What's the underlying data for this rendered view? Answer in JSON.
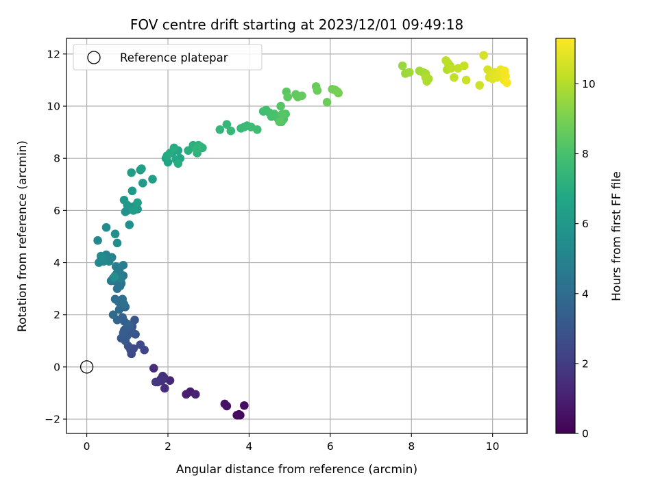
{
  "chart_data": {
    "type": "scatter",
    "title": "FOV centre drift starting at 2023/12/01 09:49:18",
    "xlabel": "Angular distance from reference (arcmin)",
    "ylabel": "Rotation from reference (arcmin)",
    "xlim": [
      -0.5,
      10.85
    ],
    "ylim": [
      -2.55,
      12.6
    ],
    "xticks": [
      "0",
      "2",
      "4",
      "6",
      "8",
      "10"
    ],
    "xtick_values": [
      0,
      2,
      4,
      6,
      8,
      10
    ],
    "yticks": [
      "−2",
      "0",
      "2",
      "4",
      "6",
      "8",
      "10",
      "12"
    ],
    "ytick_values": [
      -2,
      0,
      2,
      4,
      6,
      8,
      10,
      12
    ],
    "grid": true,
    "legend": {
      "placement": "upper-left",
      "entries": [
        "Reference platepar"
      ]
    },
    "reference_point": {
      "x": 0,
      "y": 0,
      "marker": "open-circle"
    },
    "colorbar": {
      "label": "Hours from first FF file",
      "range": [
        0,
        11.3
      ],
      "ticks": [
        "0",
        "2",
        "4",
        "6",
        "8",
        "10"
      ],
      "tick_values": [
        0,
        2,
        4,
        6,
        8,
        10
      ],
      "colormap": "viridis"
    },
    "points": {
      "x": [
        3.72,
        3.75,
        3.78,
        3.7,
        3.88,
        3.4,
        3.45,
        2.45,
        2.55,
        2.68,
        2.05,
        1.82,
        1.65,
        1.87,
        1.9,
        1.85,
        1.92,
        1.75,
        1.7,
        1.42,
        1.32,
        1.1,
        1.08,
        1.15,
        1.02,
        0.95,
        0.88,
        1.2,
        1.05,
        0.95,
        0.92,
        1.12,
        1.18,
        0.85,
        1.0,
        0.9,
        1.1,
        0.95,
        1.05,
        0.88,
        0.92,
        1.0,
        0.75,
        0.8,
        0.85,
        0.95,
        0.65,
        0.7,
        0.78,
        0.88,
        0.92,
        0.75,
        0.82,
        0.85,
        0.68,
        0.8,
        0.9,
        0.7,
        0.6,
        0.75,
        0.8,
        0.85,
        0.9,
        0.65,
        0.72,
        0.55,
        0.62,
        0.48,
        0.4,
        0.55,
        0.3,
        0.35,
        0.42,
        0.27,
        0.48,
        0.35,
        0.7,
        0.75,
        0.68,
        1.05,
        0.95,
        1.0,
        1.1,
        1.15,
        1.25,
        0.92,
        1.0,
        1.12,
        1.38,
        1.32,
        1.1,
        1.62,
        1.35,
        1.25,
        1.15,
        2.0,
        1.95,
        2.1,
        2.25,
        2.3,
        2.2,
        1.98,
        2.05,
        2.15,
        2.25,
        2.5,
        2.62,
        2.75,
        2.72,
        2.85,
        2.8,
        2.7,
        3.28,
        3.45,
        3.55,
        3.8,
        3.88,
        3.95,
        4.05,
        4.2,
        4.35,
        4.42,
        4.5,
        4.55,
        4.62,
        4.72,
        4.8,
        4.85,
        4.9,
        4.78,
        4.82,
        4.75,
        4.92,
        4.95,
        5.15,
        5.2,
        5.3,
        5.65,
        5.68,
        5.92,
        6.05,
        6.12,
        6.18,
        6.2,
        7.78,
        7.85,
        7.95,
        8.2,
        8.28,
        8.35,
        8.42,
        8.38,
        8.35,
        8.88,
        8.95,
        8.9,
        8.85,
        8.98,
        9.05,
        9.15,
        9.3,
        9.35,
        9.68,
        9.78,
        9.88,
        9.92,
        9.95,
        10.0,
        10.05,
        10.1,
        10.15,
        10.2,
        10.25,
        10.28,
        10.3,
        10.32,
        10.35
      ],
      "y": [
        -1.85,
        -1.82,
        -1.85,
        -1.85,
        -1.48,
        -1.42,
        -1.5,
        -1.05,
        -0.95,
        -1.05,
        -0.52,
        -0.48,
        -0.05,
        -0.35,
        -0.4,
        -0.52,
        -0.82,
        -0.58,
        -0.58,
        0.65,
        0.85,
        0.5,
        0.65,
        0.7,
        0.8,
        1.0,
        1.12,
        1.25,
        1.3,
        1.0,
        1.4,
        1.55,
        1.8,
        1.1,
        1.2,
        1.3,
        1.4,
        1.45,
        1.6,
        1.9,
        1.75,
        1.65,
        1.8,
        2.2,
        2.4,
        2.3,
        2.0,
        2.6,
        2.5,
        2.6,
        2.4,
        3.0,
        3.1,
        3.2,
        3.3,
        3.4,
        3.5,
        3.5,
        3.3,
        3.6,
        3.7,
        3.4,
        3.9,
        3.4,
        3.85,
        4.1,
        4.2,
        4.3,
        4.2,
        4.05,
        4.0,
        4.1,
        4.05,
        4.85,
        5.35,
        4.25,
        5.1,
        4.75,
        3.45,
        5.45,
        5.95,
        6.0,
        6.1,
        6.15,
        6.05,
        6.4,
        6.2,
        6.75,
        7.05,
        7.55,
        7.45,
        7.2,
        7.6,
        6.3,
        6.0,
        7.85,
        8.0,
        8.2,
        8.3,
        8.0,
        7.95,
        8.1,
        8.2,
        8.4,
        7.8,
        8.3,
        8.5,
        8.5,
        8.2,
        8.4,
        8.45,
        8.35,
        9.1,
        9.3,
        9.05,
        9.15,
        9.2,
        9.25,
        9.2,
        9.1,
        9.8,
        9.85,
        9.75,
        9.6,
        9.7,
        9.5,
        9.4,
        9.5,
        9.7,
        10.0,
        9.7,
        9.4,
        10.55,
        10.35,
        10.45,
        10.35,
        10.4,
        10.75,
        10.6,
        10.15,
        10.65,
        10.62,
        10.55,
        10.5,
        11.55,
        11.25,
        11.3,
        11.35,
        11.3,
        11.25,
        11.05,
        10.95,
        11.1,
        11.4,
        11.55,
        11.65,
        11.75,
        11.45,
        11.1,
        11.45,
        11.55,
        11.0,
        10.8,
        11.95,
        11.4,
        11.1,
        11.2,
        11.05,
        11.3,
        11.1,
        11.2,
        11.4,
        11.25,
        11.0,
        11.35,
        11.15,
        10.9
      ],
      "hours": [
        0.3,
        0.25,
        0.2,
        0.35,
        0.4,
        0.6,
        0.55,
        1.0,
        0.9,
        1.05,
        1.25,
        1.3,
        1.45,
        1.6,
        1.55,
        1.65,
        1.5,
        1.7,
        1.75,
        2.35,
        2.45,
        2.5,
        2.6,
        2.55,
        2.7,
        2.8,
        2.9,
        3.0,
        3.05,
        3.1,
        3.15,
        2.95,
        3.0,
        3.2,
        3.25,
        3.3,
        3.2,
        3.35,
        3.4,
        3.5,
        3.45,
        3.55,
        3.6,
        3.8,
        3.85,
        3.9,
        3.95,
        4.0,
        4.05,
        4.1,
        4.15,
        4.25,
        4.3,
        4.35,
        4.4,
        4.45,
        4.5,
        4.55,
        4.6,
        4.65,
        4.7,
        4.75,
        4.8,
        4.85,
        4.8,
        4.9,
        4.95,
        5.0,
        5.05,
        5.1,
        5.15,
        5.2,
        5.25,
        5.3,
        5.4,
        5.35,
        5.45,
        5.5,
        5.55,
        5.6,
        5.65,
        5.7,
        5.75,
        5.8,
        5.85,
        5.9,
        5.95,
        6.05,
        6.1,
        6.15,
        6.2,
        6.3,
        6.35,
        6.4,
        6.25,
        6.55,
        6.6,
        6.65,
        6.7,
        6.75,
        6.8,
        6.85,
        6.9,
        6.95,
        7.0,
        7.05,
        7.1,
        7.15,
        7.2,
        7.25,
        7.3,
        7.35,
        7.4,
        7.45,
        7.5,
        7.55,
        7.6,
        7.65,
        7.7,
        7.75,
        7.8,
        7.85,
        7.9,
        7.95,
        8.0,
        8.05,
        8.1,
        8.15,
        8.2,
        8.25,
        8.3,
        8.35,
        8.4,
        8.45,
        8.5,
        8.55,
        8.6,
        8.65,
        8.7,
        8.75,
        8.8,
        8.85,
        8.9,
        8.95,
        9.55,
        9.6,
        9.65,
        9.7,
        9.75,
        9.8,
        9.85,
        9.9,
        9.95,
        10.0,
        10.05,
        10.1,
        10.15,
        10.2,
        10.25,
        10.3,
        10.35,
        10.4,
        10.45,
        10.55,
        10.6,
        10.65,
        10.7,
        10.75,
        10.8,
        10.85,
        10.9,
        10.95,
        11.0,
        11.05,
        11.1,
        11.15,
        11.2
      ]
    }
  }
}
